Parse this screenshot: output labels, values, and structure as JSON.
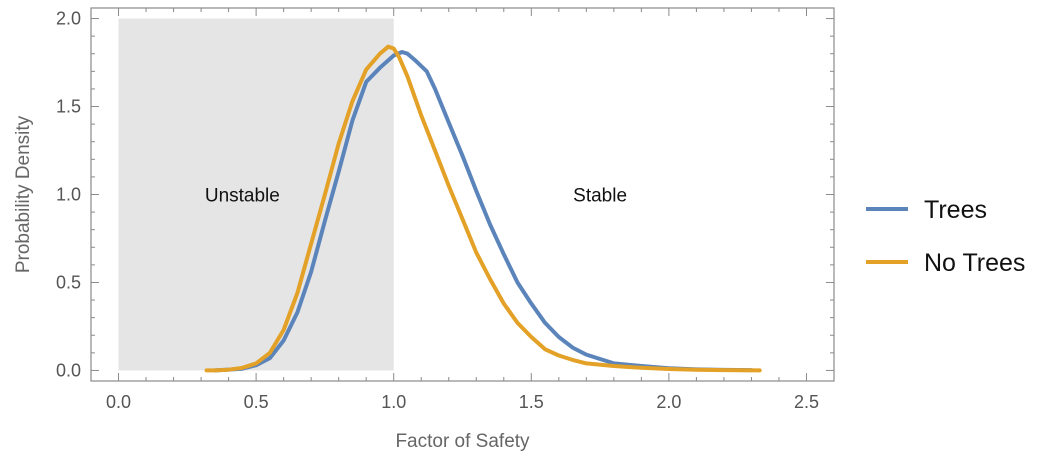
{
  "chart_data": {
    "type": "line",
    "xlabel": "Factor of Safety",
    "ylabel": "Probability Density",
    "xlim": [
      -0.1,
      2.6
    ],
    "ylim": [
      -0.06,
      2.06
    ],
    "x_ticks": [
      "0.0",
      "0.5",
      "1.0",
      "1.5",
      "2.0",
      "2.5"
    ],
    "y_ticks": [
      "0.0",
      "0.5",
      "1.0",
      "1.5",
      "2.0"
    ],
    "x_tick_values": [
      0,
      0.5,
      1.0,
      1.5,
      2.0,
      2.5
    ],
    "y_tick_values": [
      0,
      0.5,
      1.0,
      1.5,
      2.0
    ],
    "shaded_region": {
      "x": [
        0,
        1.0
      ],
      "y": [
        0,
        2.0
      ],
      "color": "#e5e5e5"
    },
    "annotations": [
      {
        "text": "Unstable",
        "x": 0.45,
        "y": 1.0
      },
      {
        "text": "Stable",
        "x": 1.75,
        "y": 1.0
      }
    ],
    "legend_position": "right",
    "series": [
      {
        "name": "Trees",
        "color": "#5b84bb",
        "x": [
          0.35,
          0.4,
          0.45,
          0.5,
          0.55,
          0.6,
          0.65,
          0.7,
          0.75,
          0.8,
          0.85,
          0.9,
          0.95,
          1.0,
          1.03,
          1.05,
          1.08,
          1.12,
          1.15,
          1.2,
          1.25,
          1.3,
          1.35,
          1.4,
          1.45,
          1.5,
          1.55,
          1.6,
          1.65,
          1.7,
          1.75,
          1.8,
          1.9,
          2.0,
          2.1,
          2.2,
          2.3
        ],
        "y": [
          0.0,
          0.005,
          0.01,
          0.03,
          0.07,
          0.17,
          0.33,
          0.56,
          0.85,
          1.13,
          1.42,
          1.64,
          1.72,
          1.79,
          1.81,
          1.8,
          1.76,
          1.7,
          1.6,
          1.41,
          1.22,
          1.02,
          0.83,
          0.66,
          0.5,
          0.38,
          0.27,
          0.19,
          0.13,
          0.09,
          0.065,
          0.04,
          0.025,
          0.012,
          0.006,
          0.003,
          0.002
        ]
      },
      {
        "name": "No Trees",
        "color": "#e3a127",
        "x": [
          0.32,
          0.35,
          0.4,
          0.45,
          0.5,
          0.55,
          0.6,
          0.65,
          0.7,
          0.75,
          0.8,
          0.85,
          0.9,
          0.95,
          0.98,
          1.0,
          1.02,
          1.05,
          1.1,
          1.15,
          1.2,
          1.25,
          1.3,
          1.35,
          1.4,
          1.45,
          1.5,
          1.55,
          1.6,
          1.65,
          1.7,
          1.8,
          1.9,
          2.0,
          2.1,
          2.2,
          2.33
        ],
        "y": [
          0.0,
          0.0,
          0.004,
          0.015,
          0.04,
          0.1,
          0.23,
          0.44,
          0.72,
          1.0,
          1.29,
          1.53,
          1.71,
          1.8,
          1.84,
          1.83,
          1.78,
          1.67,
          1.45,
          1.25,
          1.05,
          0.86,
          0.67,
          0.52,
          0.38,
          0.27,
          0.19,
          0.12,
          0.085,
          0.06,
          0.04,
          0.025,
          0.015,
          0.008,
          0.004,
          0.002,
          0.0
        ]
      }
    ]
  }
}
